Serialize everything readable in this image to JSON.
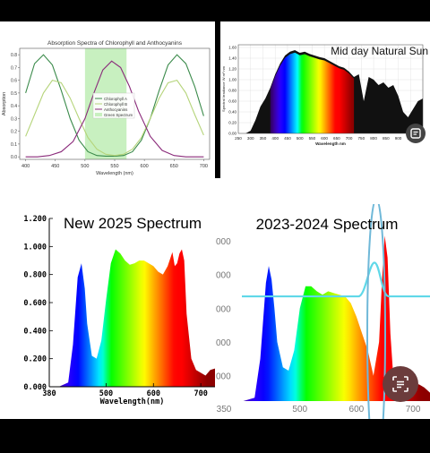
{
  "chart_data": [
    {
      "type": "line",
      "title": "Absorption Spectra of Chlorophyll and Anthocyanins",
      "xlabel": "Wavelength (nm)",
      "ylabel": "Absorption",
      "xlim": [
        390,
        710
      ],
      "ylim": [
        -0.02,
        0.85
      ],
      "xticks": [
        400,
        450,
        500,
        550,
        600,
        650,
        700
      ],
      "yticks": [
        0.0,
        0.1,
        0.2,
        0.3,
        0.4,
        0.5,
        0.6,
        0.7,
        0.8
      ],
      "shaded_region": {
        "name": "Green Spectrum",
        "from": 500,
        "to": 570,
        "color": "#c8f0c0"
      },
      "legend_placement": "center",
      "series": [
        {
          "name": "Chlorophyll A",
          "color": "#3a8a4a",
          "x": [
            400,
            415,
            430,
            445,
            460,
            475,
            490,
            505,
            520,
            535,
            550,
            565,
            580,
            595,
            610,
            625,
            640,
            655,
            670,
            685,
            700
          ],
          "y": [
            0.5,
            0.73,
            0.8,
            0.72,
            0.52,
            0.3,
            0.13,
            0.04,
            0.01,
            0.005,
            0.005,
            0.01,
            0.04,
            0.13,
            0.3,
            0.52,
            0.72,
            0.8,
            0.73,
            0.55,
            0.32
          ]
        },
        {
          "name": "Chlorophyll B",
          "color": "#b5d47a",
          "x": [
            400,
            415,
            430,
            445,
            460,
            475,
            490,
            505,
            520,
            535,
            550,
            565,
            580,
            595,
            610,
            625,
            640,
            655,
            670,
            685,
            700
          ],
          "y": [
            0.16,
            0.33,
            0.5,
            0.6,
            0.58,
            0.46,
            0.3,
            0.15,
            0.06,
            0.02,
            0.01,
            0.02,
            0.06,
            0.15,
            0.3,
            0.46,
            0.58,
            0.6,
            0.5,
            0.33,
            0.17
          ]
        },
        {
          "name": "Anthocyanins",
          "color": "#8a2a7a",
          "x": [
            400,
            420,
            440,
            460,
            480,
            500,
            515,
            530,
            545,
            560,
            575,
            590,
            610,
            630,
            650,
            670,
            690,
            700
          ],
          "y": [
            0.0,
            0.0,
            0.01,
            0.04,
            0.12,
            0.3,
            0.5,
            0.68,
            0.75,
            0.7,
            0.55,
            0.36,
            0.16,
            0.05,
            0.01,
            0.0,
            0.0,
            0.0
          ]
        }
      ]
    },
    {
      "type": "area",
      "title": "Mid day Natural Sun",
      "xlabel": "Wavelength nm",
      "ylabel": "Spectral Irradiance W m² nm",
      "xlim": [
        250,
        1000
      ],
      "ylim": [
        0,
        1.65
      ],
      "xticks": [
        250,
        300,
        350,
        400,
        450,
        500,
        550,
        600,
        650,
        700,
        750,
        800,
        850,
        900,
        950
      ],
      "yticks": [
        0.0,
        0.2,
        0.4,
        0.6,
        0.8,
        1.0,
        1.2,
        1.4,
        1.6
      ],
      "x": [
        280,
        300,
        320,
        340,
        360,
        380,
        400,
        420,
        440,
        460,
        480,
        500,
        520,
        540,
        560,
        580,
        600,
        620,
        640,
        660,
        680,
        700,
        720,
        740,
        760,
        780,
        800,
        820,
        840,
        860,
        880,
        900,
        920,
        940,
        960,
        980,
        1000
      ],
      "y": [
        0.0,
        0.05,
        0.25,
        0.5,
        0.65,
        0.85,
        1.1,
        1.3,
        1.45,
        1.52,
        1.55,
        1.5,
        1.52,
        1.48,
        1.45,
        1.42,
        1.4,
        1.35,
        1.3,
        1.25,
        1.22,
        1.15,
        1.05,
        1.1,
        0.6,
        1.05,
        1.0,
        0.9,
        0.95,
        0.85,
        0.9,
        0.7,
        0.4,
        0.3,
        0.45,
        0.6,
        0.65
      ]
    },
    {
      "type": "area",
      "title": "New 2025 Spectrum",
      "xlabel": "Wavelength(nm)",
      "ylabel": "",
      "xlim": [
        380,
        730
      ],
      "ylim": [
        0,
        1.2
      ],
      "xticks": [
        380,
        500,
        600,
        700
      ],
      "yticks": [
        0.0,
        0.2,
        0.4,
        0.6,
        0.8,
        1.0,
        1.2
      ],
      "x": [
        380,
        400,
        420,
        430,
        440,
        448,
        455,
        460,
        470,
        480,
        490,
        500,
        510,
        520,
        530,
        540,
        550,
        560,
        570,
        580,
        590,
        600,
        610,
        620,
        630,
        640,
        645,
        650,
        655,
        660,
        665,
        670,
        680,
        690,
        700,
        710,
        720,
        730
      ],
      "y": [
        0.0,
        0.0,
        0.03,
        0.3,
        0.78,
        0.88,
        0.7,
        0.45,
        0.22,
        0.2,
        0.33,
        0.62,
        0.88,
        0.98,
        0.95,
        0.9,
        0.87,
        0.88,
        0.9,
        0.9,
        0.88,
        0.86,
        0.82,
        0.8,
        0.86,
        0.96,
        0.86,
        0.88,
        0.95,
        0.98,
        0.9,
        0.52,
        0.2,
        0.12,
        0.1,
        0.08,
        0.12,
        0.13
      ]
    },
    {
      "type": "area",
      "title": "2023-2024 Spectrum",
      "xlabel": "",
      "ylabel": "",
      "xlim": [
        350,
        730
      ],
      "ylim": [
        0,
        1.05
      ],
      "xticks": [
        350,
        500,
        600,
        700
      ],
      "ytick_labels": [
        "000",
        "000",
        "000",
        "000",
        "000"
      ],
      "x": [
        350,
        400,
        420,
        430,
        440,
        445,
        450,
        455,
        460,
        470,
        480,
        490,
        500,
        510,
        520,
        530,
        540,
        550,
        560,
        570,
        580,
        590,
        600,
        610,
        620,
        630,
        640,
        645,
        650,
        655,
        660,
        665,
        670,
        680,
        690,
        700,
        710,
        720,
        730
      ],
      "y": [
        0.0,
        0.0,
        0.02,
        0.25,
        0.7,
        0.8,
        0.72,
        0.55,
        0.35,
        0.2,
        0.18,
        0.3,
        0.55,
        0.68,
        0.68,
        0.65,
        0.63,
        0.65,
        0.64,
        0.63,
        0.62,
        0.58,
        0.5,
        0.4,
        0.3,
        0.15,
        0.35,
        0.7,
        0.98,
        0.85,
        0.4,
        0.15,
        0.05,
        0.03,
        0.03,
        0.05,
        0.1,
        0.08,
        0.05
      ]
    }
  ],
  "ui": {
    "copy_text_icon": "copy-text-icon",
    "copy_text_icon_2": "copy-text-icon"
  }
}
